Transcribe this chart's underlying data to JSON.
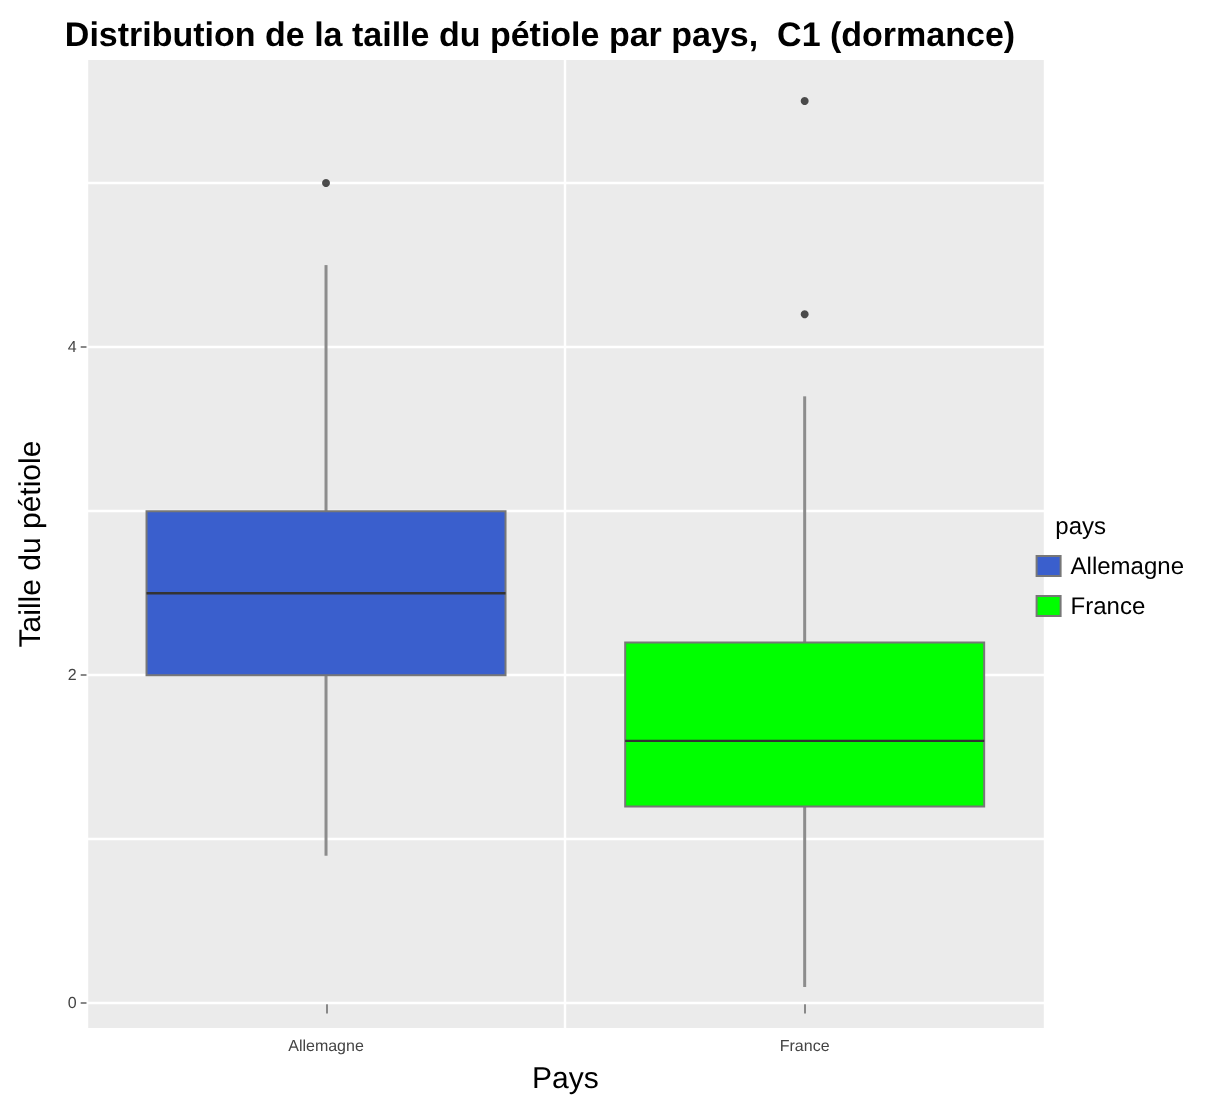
{
  "chart_data": {
    "type": "box",
    "title": "Distribution de la taille du pétiole par pays,  C1 (dormance)",
    "xlabel": "Pays",
    "ylabel": "Taille du pétiole",
    "legend_title": "pays",
    "categories": [
      "Allemagne",
      "France"
    ],
    "series": [
      {
        "name": "Allemagne",
        "color": "#3a5fcd",
        "boxes": [
          {
            "low": 0.9,
            "q1": 2.0,
            "median": 2.5,
            "q3": 3.0,
            "high": 4.5,
            "outliers": [
              5.0
            ]
          },
          null
        ]
      },
      {
        "name": "France",
        "color": "#00ff00",
        "boxes": [
          null,
          {
            "low": 0.1,
            "q1": 1.2,
            "median": 1.6,
            "q3": 2.2,
            "high": 3.7,
            "outliers": [
              4.2,
              5.5
            ]
          }
        ]
      }
    ],
    "ylim": [
      -0.15,
      5.75
    ],
    "yticks": [
      0,
      {
        "value": 1,
        "label": null
      },
      2,
      {
        "value": 3,
        "label": null
      },
      4,
      {
        "value": 5,
        "label": null
      }
    ],
    "grid": true,
    "legend": "right"
  }
}
